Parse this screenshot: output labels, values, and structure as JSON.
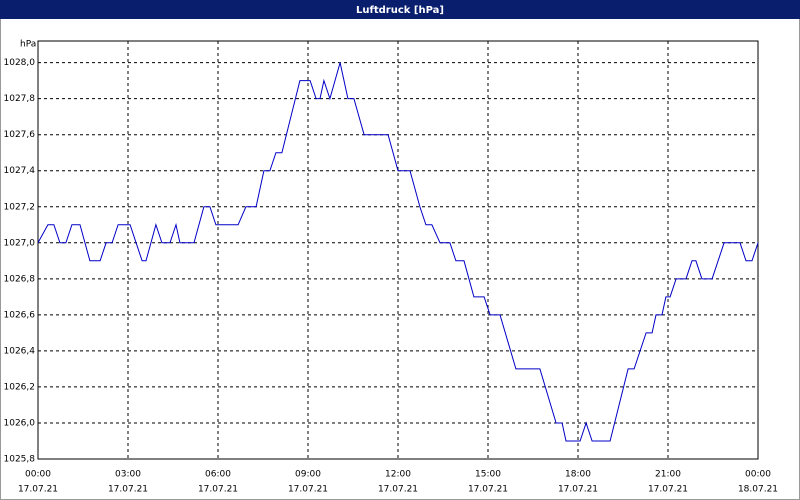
{
  "chart_data": {
    "type": "line",
    "title": "Luftdruck [hPa]",
    "y_unit": "hPa",
    "x": [
      0,
      0.33,
      0.53,
      0.73,
      0.93,
      1.13,
      1.4,
      1.73,
      2.07,
      2.27,
      2.47,
      2.67,
      3.07,
      3.47,
      3.6,
      3.93,
      4.13,
      4.4,
      4.6,
      4.73,
      5.2,
      5.53,
      5.73,
      5.93,
      6.67,
      6.93,
      7.27,
      7.53,
      7.73,
      7.93,
      8.13,
      8.73,
      9.07,
      9.27,
      9.4,
      9.53,
      9.73,
      10.07,
      10.33,
      10.53,
      10.87,
      11.67,
      12,
      12.4,
      12.73,
      12.93,
      13.13,
      13.4,
      13.73,
      13.93,
      14.2,
      14.53,
      14.87,
      15.07,
      15.4,
      15.93,
      16.73,
      17.27,
      17.47,
      17.6,
      18.07,
      18.27,
      18.47,
      19.07,
      19.67,
      19.87,
      20.27,
      20.47,
      20.6,
      20.8,
      20.93,
      21.07,
      21.27,
      21.6,
      21.8,
      21.93,
      22.13,
      22.47,
      22.67,
      22.87,
      23.4,
      23.6,
      23.8,
      24
    ],
    "series": [
      {
        "name": "Luftdruck",
        "color": "#0000c8",
        "values": [
          1027.0,
          1027.1,
          1027.1,
          1027.0,
          1027.0,
          1027.1,
          1027.1,
          1026.9,
          1026.9,
          1027.0,
          1027.0,
          1027.1,
          1027.1,
          1026.9,
          1026.9,
          1027.1,
          1027.0,
          1027.0,
          1027.1,
          1027.0,
          1027.0,
          1027.2,
          1027.2,
          1027.1,
          1027.1,
          1027.2,
          1027.2,
          1027.4,
          1027.4,
          1027.5,
          1027.5,
          1027.9,
          1027.9,
          1027.8,
          1027.8,
          1027.9,
          1027.8,
          1028.0,
          1027.8,
          1027.8,
          1027.6,
          1027.6,
          1027.4,
          1027.4,
          1027.2,
          1027.1,
          1027.1,
          1027.0,
          1027.0,
          1026.9,
          1026.9,
          1026.7,
          1026.7,
          1026.6,
          1026.6,
          1026.3,
          1026.3,
          1026.0,
          1026.0,
          1025.9,
          1025.9,
          1026.0,
          1025.9,
          1025.9,
          1026.3,
          1026.3,
          1026.5,
          1026.5,
          1026.6,
          1026.6,
          1026.7,
          1026.7,
          1026.8,
          1026.8,
          1026.9,
          1026.9,
          1026.8,
          1026.8,
          1026.9,
          1027.0,
          1027.0,
          1026.9,
          1026.9,
          1027.0
        ]
      }
    ],
    "xlim": [
      0,
      24
    ],
    "xticks": [
      {
        "value": 0,
        "label": "00:00"
      },
      {
        "value": 3,
        "label": "03:00"
      },
      {
        "value": 6,
        "label": "06:00"
      },
      {
        "value": 9,
        "label": "09:00"
      },
      {
        "value": 12,
        "label": "12:00"
      },
      {
        "value": 15,
        "label": "15:00"
      },
      {
        "value": 18,
        "label": "18:00"
      },
      {
        "value": 21,
        "label": "21:00"
      },
      {
        "value": 24,
        "label": "00:00"
      }
    ],
    "xtick_dates": [
      "17.07.21",
      "17.07.21",
      "17.07.21",
      "17.07.21",
      "17.07.21",
      "17.07.21",
      "17.07.21",
      "17.07.21",
      "18.07.21"
    ],
    "ylim": [
      1025.8,
      1028.12
    ],
    "yticks": [
      {
        "value": 1025.8,
        "label": "1025,8"
      },
      {
        "value": 1026.0,
        "label": "1026,0"
      },
      {
        "value": 1026.2,
        "label": "1026,2"
      },
      {
        "value": 1026.4,
        "label": "1026,4"
      },
      {
        "value": 1026.6,
        "label": "1026,6"
      },
      {
        "value": 1026.8,
        "label": "1026,8"
      },
      {
        "value": 1027.0,
        "label": "1027,0"
      },
      {
        "value": 1027.2,
        "label": "1027,2"
      },
      {
        "value": 1027.4,
        "label": "1027,4"
      },
      {
        "value": 1027.6,
        "label": "1027,6"
      },
      {
        "value": 1027.8,
        "label": "1027,8"
      },
      {
        "value": 1028.0,
        "label": "1028,0"
      }
    ],
    "grid": true
  }
}
